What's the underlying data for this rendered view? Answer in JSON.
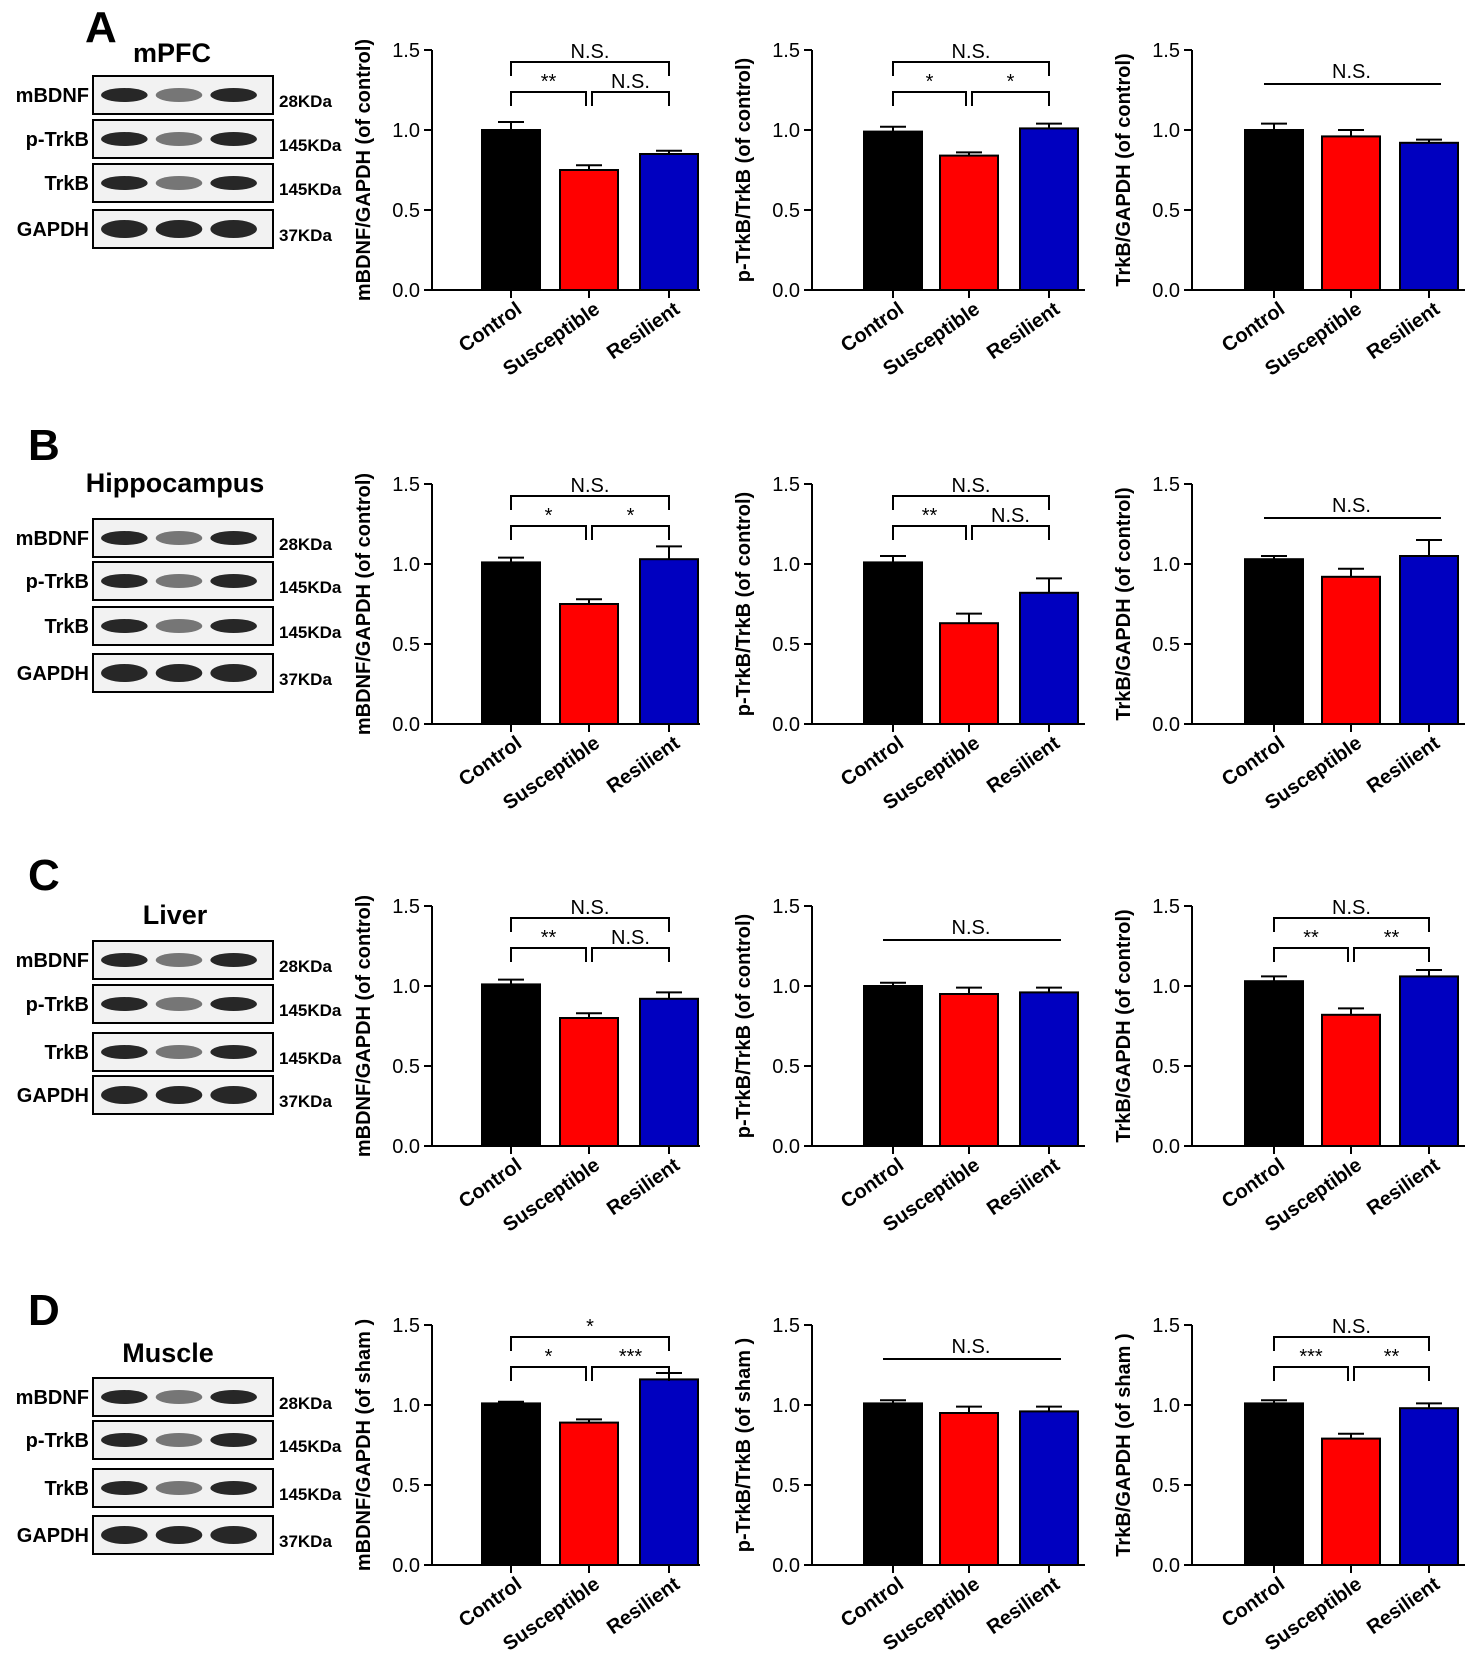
{
  "groups": [
    "Control",
    "Susceptible",
    "Resilient"
  ],
  "colors": {
    "Control": "#000000",
    "Susceptible": "#ff0000",
    "Resilient": "#0000c0"
  },
  "bands": [
    "mBDNF",
    "p-TrkB",
    "TrkB",
    "GAPDH"
  ],
  "kda": [
    "28KDa",
    "145KDa",
    "145KDa",
    "37KDa"
  ],
  "panels": [
    {
      "letter": "A",
      "tissue": "mPFC"
    },
    {
      "letter": "B",
      "tissue": "Hippocampus"
    },
    {
      "letter": "C",
      "tissue": "Liver"
    },
    {
      "letter": "D",
      "tissue": "Muscle"
    }
  ],
  "chart_data": [
    {
      "panel": "A",
      "type": "bar",
      "categories": [
        "Control",
        "Susceptible",
        "Resilient"
      ],
      "ylabel": "mBDNF/GAPDH (of control)",
      "ylim": [
        0,
        1.5
      ],
      "yticks": [
        "0.0",
        "0.5",
        "1.0",
        "1.5"
      ],
      "values": [
        1.0,
        0.75,
        0.85
      ],
      "errors": [
        0.05,
        0.03,
        0.02
      ],
      "significance": [
        {
          "from": 0,
          "to": 2,
          "label": "N.S.",
          "level": 1
        },
        {
          "from": 0,
          "to": 1,
          "label": "**",
          "level": 0
        },
        {
          "from": 1,
          "to": 2,
          "label": "N.S.",
          "level": 0
        }
      ]
    },
    {
      "panel": "A",
      "type": "bar",
      "categories": [
        "Control",
        "Susceptible",
        "Resilient"
      ],
      "ylabel": "p-TrkB/TrkB (of control)",
      "ylim": [
        0,
        1.5
      ],
      "yticks": [
        "0.0",
        "0.5",
        "1.0",
        "1.5"
      ],
      "values": [
        0.99,
        0.84,
        1.01
      ],
      "errors": [
        0.03,
        0.02,
        0.03
      ],
      "significance": [
        {
          "from": 0,
          "to": 2,
          "label": "N.S.",
          "level": 1
        },
        {
          "from": 0,
          "to": 1,
          "label": "*",
          "level": 0
        },
        {
          "from": 1,
          "to": 2,
          "label": "*",
          "level": 0
        }
      ]
    },
    {
      "panel": "A",
      "type": "bar",
      "categories": [
        "Control",
        "Susceptible",
        "Resilient"
      ],
      "ylabel": "TrkB/GAPDH (of control)",
      "ylim": [
        0,
        1.5
      ],
      "yticks": [
        "0.0",
        "0.5",
        "1.0",
        "1.5"
      ],
      "values": [
        1.0,
        0.96,
        0.92
      ],
      "errors": [
        0.04,
        0.04,
        0.02
      ],
      "significance": [
        {
          "from": 0,
          "to": 2,
          "label": "N.S.",
          "level": 1,
          "plain": true
        }
      ]
    },
    {
      "panel": "B",
      "type": "bar",
      "categories": [
        "Control",
        "Susceptible",
        "Resilient"
      ],
      "ylabel": "mBDNF/GAPDH (of control)",
      "ylim": [
        0,
        1.5
      ],
      "yticks": [
        "0.0",
        "0.5",
        "1.0",
        "1.5"
      ],
      "values": [
        1.01,
        0.75,
        1.03
      ],
      "errors": [
        0.03,
        0.03,
        0.08
      ],
      "significance": [
        {
          "from": 0,
          "to": 2,
          "label": "N.S.",
          "level": 1
        },
        {
          "from": 0,
          "to": 1,
          "label": "*",
          "level": 0
        },
        {
          "from": 1,
          "to": 2,
          "label": "*",
          "level": 0
        }
      ]
    },
    {
      "panel": "B",
      "type": "bar",
      "categories": [
        "Control",
        "Susceptible",
        "Resilient"
      ],
      "ylabel": "p-TrkB/TrkB (of control)",
      "ylim": [
        0,
        1.5
      ],
      "yticks": [
        "0.0",
        "0.5",
        "1.0",
        "1.5"
      ],
      "values": [
        1.01,
        0.63,
        0.82
      ],
      "errors": [
        0.04,
        0.06,
        0.09
      ],
      "significance": [
        {
          "from": 0,
          "to": 2,
          "label": "N.S.",
          "level": 1
        },
        {
          "from": 0,
          "to": 1,
          "label": "**",
          "level": 0
        },
        {
          "from": 1,
          "to": 2,
          "label": "N.S.",
          "level": 0
        }
      ]
    },
    {
      "panel": "B",
      "type": "bar",
      "categories": [
        "Control",
        "Susceptible",
        "Resilient"
      ],
      "ylabel": "TrkB/GAPDH (of control)",
      "ylim": [
        0,
        1.5
      ],
      "yticks": [
        "0.0",
        "0.5",
        "1.0",
        "1.5"
      ],
      "values": [
        1.03,
        0.92,
        1.05
      ],
      "errors": [
        0.02,
        0.05,
        0.1
      ],
      "significance": [
        {
          "from": 0,
          "to": 2,
          "label": "N.S.",
          "level": 1,
          "plain": true
        }
      ]
    },
    {
      "panel": "C",
      "type": "bar",
      "categories": [
        "Control",
        "Susceptible",
        "Resilient"
      ],
      "ylabel": "mBDNF/GAPDH (of control)",
      "ylim": [
        0,
        1.5
      ],
      "yticks": [
        "0.0",
        "0.5",
        "1.0",
        "1.5"
      ],
      "values": [
        1.01,
        0.8,
        0.92
      ],
      "errors": [
        0.03,
        0.03,
        0.04
      ],
      "significance": [
        {
          "from": 0,
          "to": 2,
          "label": "N.S.",
          "level": 1
        },
        {
          "from": 0,
          "to": 1,
          "label": "**",
          "level": 0
        },
        {
          "from": 1,
          "to": 2,
          "label": "N.S.",
          "level": 0
        }
      ]
    },
    {
      "panel": "C",
      "type": "bar",
      "categories": [
        "Control",
        "Susceptible",
        "Resilient"
      ],
      "ylabel": "p-TrkB/TrkB (of control)",
      "ylim": [
        0,
        1.5
      ],
      "yticks": [
        "0.0",
        "0.5",
        "1.0",
        "1.5"
      ],
      "values": [
        1.0,
        0.95,
        0.96
      ],
      "errors": [
        0.02,
        0.04,
        0.03
      ],
      "significance": [
        {
          "from": 0,
          "to": 2,
          "label": "N.S.",
          "level": 1,
          "plain": true
        }
      ]
    },
    {
      "panel": "C",
      "type": "bar",
      "categories": [
        "Control",
        "Susceptible",
        "Resilient"
      ],
      "ylabel": "TrkB/GAPDH (of control)",
      "ylim": [
        0,
        1.5
      ],
      "yticks": [
        "0.0",
        "0.5",
        "1.0",
        "1.5"
      ],
      "values": [
        1.03,
        0.82,
        1.06
      ],
      "errors": [
        0.03,
        0.04,
        0.04
      ],
      "significance": [
        {
          "from": 0,
          "to": 2,
          "label": "N.S.",
          "level": 1
        },
        {
          "from": 0,
          "to": 1,
          "label": "**",
          "level": 0
        },
        {
          "from": 1,
          "to": 2,
          "label": "**",
          "level": 0
        }
      ]
    },
    {
      "panel": "D",
      "type": "bar",
      "categories": [
        "Control",
        "Susceptible",
        "Resilient"
      ],
      "ylabel": "mBDNF/GAPDH (of sham )",
      "ylim": [
        0,
        1.5
      ],
      "yticks": [
        "0.0",
        "0.5",
        "1.0",
        "1.5"
      ],
      "values": [
        1.01,
        0.89,
        1.16
      ],
      "errors": [
        0.01,
        0.02,
        0.04
      ],
      "significance": [
        {
          "from": 0,
          "to": 2,
          "label": "*",
          "level": 1
        },
        {
          "from": 0,
          "to": 1,
          "label": "*",
          "level": 0
        },
        {
          "from": 1,
          "to": 2,
          "label": "***",
          "level": 0
        }
      ]
    },
    {
      "panel": "D",
      "type": "bar",
      "categories": [
        "Control",
        "Susceptible",
        "Resilient"
      ],
      "ylabel": "p-TrkB/TrkB (of sham )",
      "ylim": [
        0,
        1.5
      ],
      "yticks": [
        "0.0",
        "0.5",
        "1.0",
        "1.5"
      ],
      "values": [
        1.01,
        0.95,
        0.96
      ],
      "errors": [
        0.02,
        0.04,
        0.03
      ],
      "significance": [
        {
          "from": 0,
          "to": 2,
          "label": "N.S.",
          "level": 1,
          "plain": true
        }
      ]
    },
    {
      "panel": "D",
      "type": "bar",
      "categories": [
        "Control",
        "Susceptible",
        "Resilient"
      ],
      "ylabel": "TrkB/GAPDH (of sham )",
      "ylim": [
        0,
        1.5
      ],
      "yticks": [
        "0.0",
        "0.5",
        "1.0",
        "1.5"
      ],
      "values": [
        1.01,
        0.79,
        0.98
      ],
      "errors": [
        0.02,
        0.03,
        0.03
      ],
      "significance": [
        {
          "from": 0,
          "to": 2,
          "label": "N.S.",
          "level": 1
        },
        {
          "from": 0,
          "to": 1,
          "label": "***",
          "level": 0
        },
        {
          "from": 1,
          "to": 2,
          "label": "**",
          "level": 0
        }
      ]
    }
  ]
}
